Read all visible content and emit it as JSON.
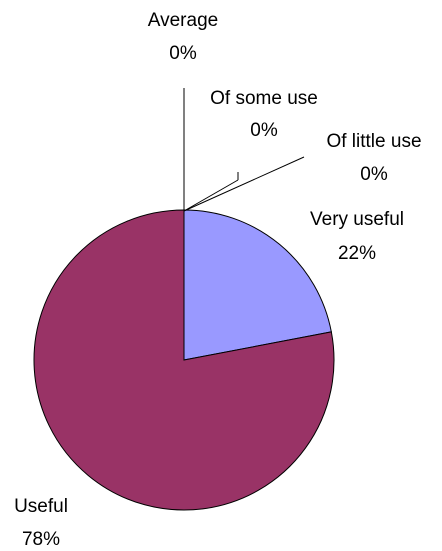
{
  "chart_data": {
    "type": "pie",
    "slices": [
      {
        "label": "Very useful",
        "value": 22,
        "value_label": "22%",
        "color": "#9999ff"
      },
      {
        "label": "Useful",
        "value": 78,
        "value_label": "78%",
        "color": "#993366"
      },
      {
        "label": "Average",
        "value": 0,
        "value_label": "0%",
        "color": "#ffffcc"
      },
      {
        "label": "Of some use",
        "value": 0,
        "value_label": "0%",
        "color": "#ccffff"
      },
      {
        "label": "Of little use",
        "value": 0,
        "value_label": "0%",
        "color": "#660066"
      }
    ],
    "start_angle": "12 o'clock",
    "direction": "clockwise",
    "legend": "none"
  }
}
